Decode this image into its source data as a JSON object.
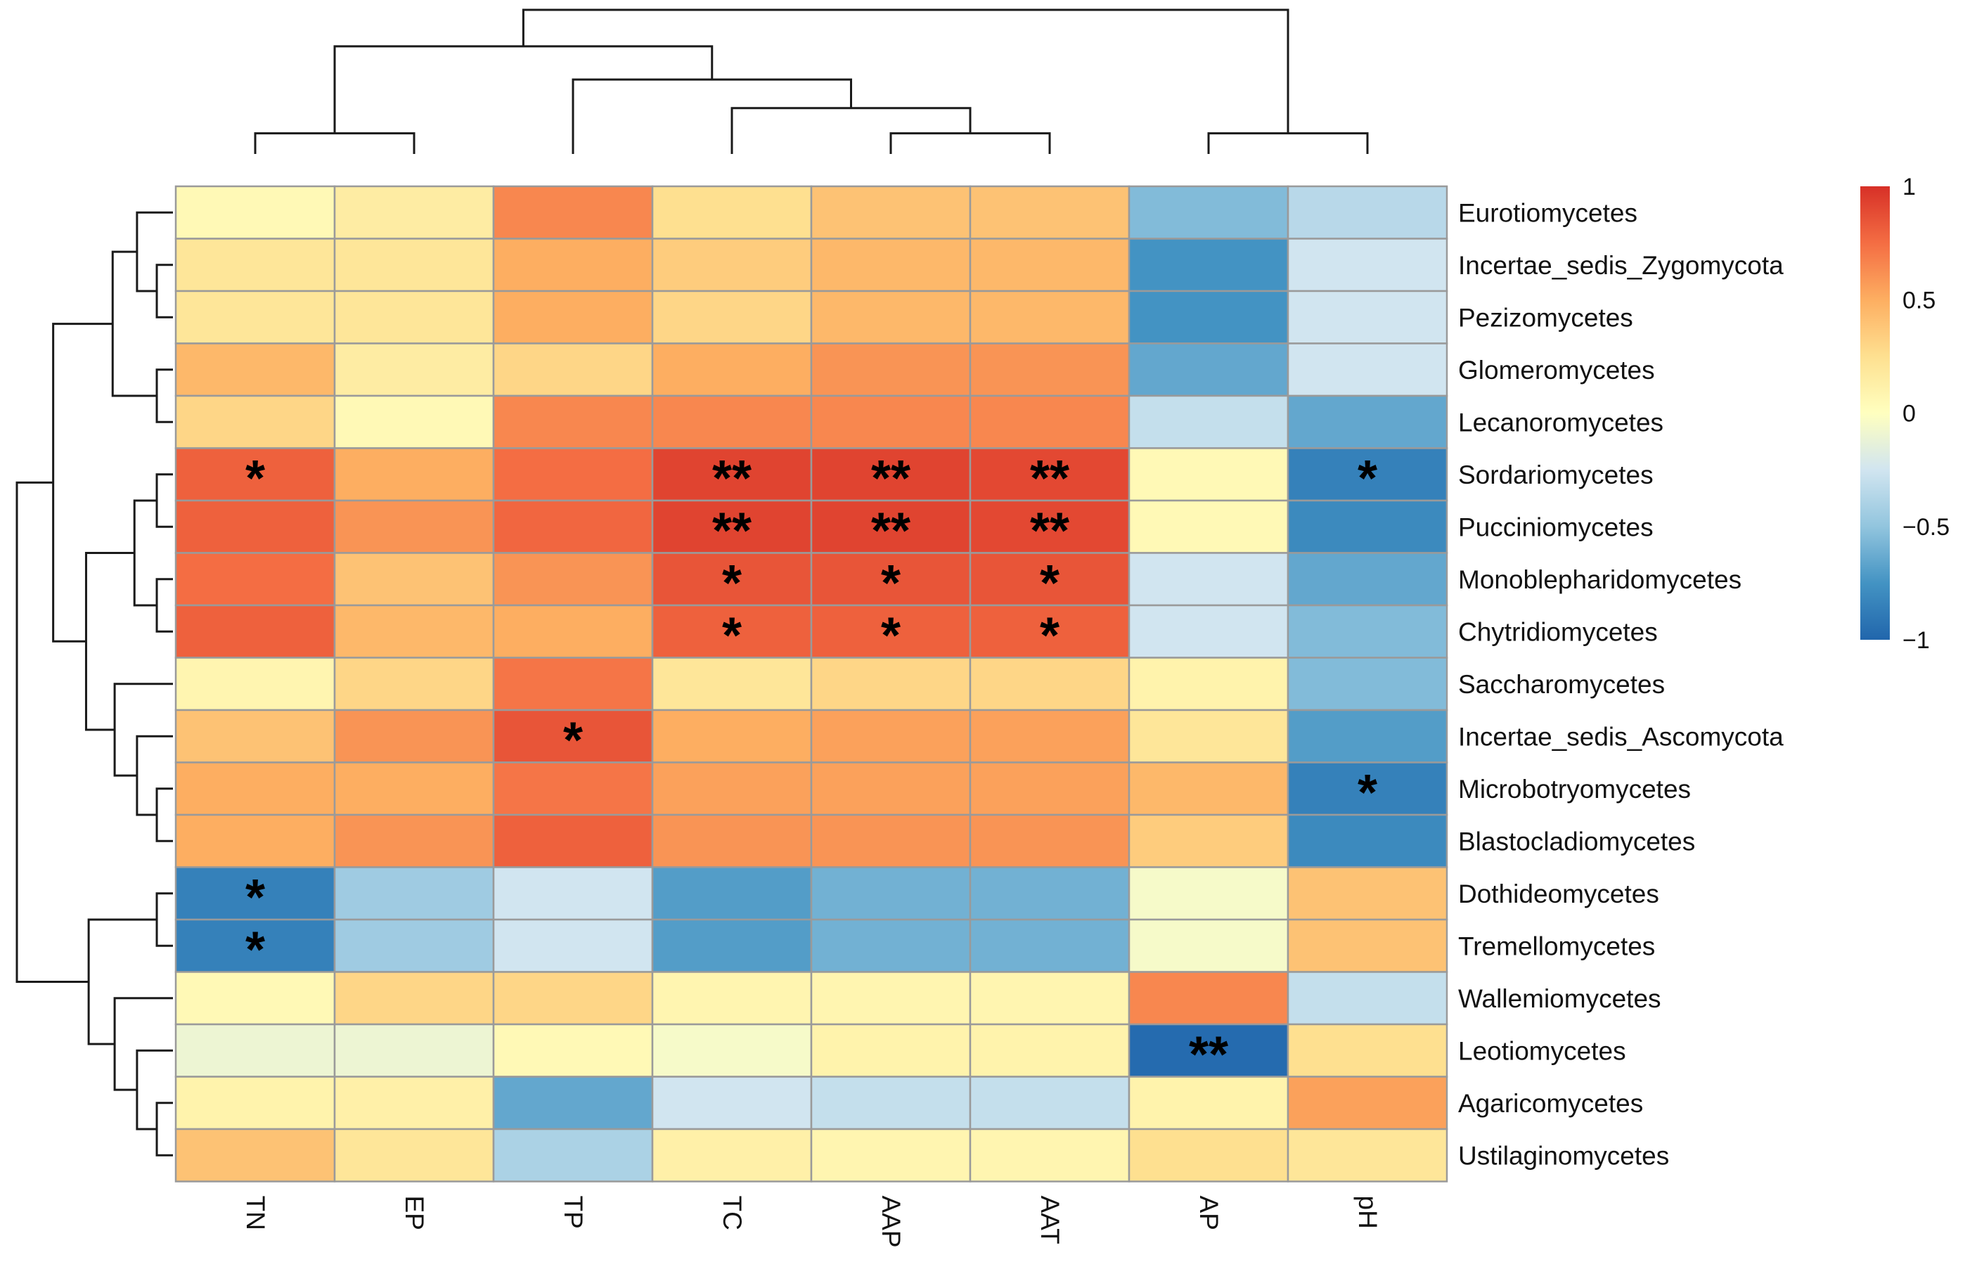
{
  "chart_data": {
    "type": "heatmap",
    "title": "",
    "columns": [
      "TN",
      "EP",
      "TP",
      "TC",
      "AAP",
      "AAT",
      "AP",
      "pH"
    ],
    "rows": [
      "Eurotiomycetes",
      "Incertae_sedis_Zygomycota",
      "Pezizomycetes",
      "Glomeromycetes",
      "Lecanoromycetes",
      "Sordariomycetes",
      "Pucciniomycetes",
      "Monoblepharidomycetes",
      "Chytridiomycetes",
      "Saccharomycetes",
      "Incertae_sedis_Ascomycota",
      "Microbotryomycetes",
      "Blastocladiomycetes",
      "Dothideomycetes",
      "Tremellomycetes",
      "Wallemiomycetes",
      "Leotiomycetes",
      "Agaricomycetes",
      "Ustilaginomycetes"
    ],
    "values": [
      [
        0.05,
        0.15,
        0.65,
        0.25,
        0.4,
        0.4,
        -0.55,
        -0.35
      ],
      [
        0.2,
        0.2,
        0.5,
        0.35,
        0.45,
        0.45,
        -0.75,
        -0.25
      ],
      [
        0.2,
        0.2,
        0.5,
        0.3,
        0.45,
        0.45,
        -0.75,
        -0.25
      ],
      [
        0.45,
        0.15,
        0.3,
        0.5,
        0.6,
        0.6,
        -0.65,
        -0.25
      ],
      [
        0.3,
        0.05,
        0.65,
        0.65,
        0.65,
        0.65,
        -0.3,
        -0.65
      ],
      [
        0.8,
        0.5,
        0.75,
        0.92,
        0.92,
        0.9,
        0.05,
        -0.85
      ],
      [
        0.8,
        0.6,
        0.78,
        0.92,
        0.92,
        0.9,
        0.05,
        -0.8
      ],
      [
        0.75,
        0.4,
        0.6,
        0.85,
        0.85,
        0.85,
        -0.25,
        -0.65
      ],
      [
        0.8,
        0.45,
        0.5,
        0.8,
        0.8,
        0.8,
        -0.25,
        -0.55
      ],
      [
        0.08,
        0.3,
        0.72,
        0.2,
        0.3,
        0.3,
        0.1,
        -0.55
      ],
      [
        0.4,
        0.6,
        0.85,
        0.5,
        0.55,
        0.55,
        0.2,
        -0.7
      ],
      [
        0.5,
        0.5,
        0.72,
        0.55,
        0.55,
        0.55,
        0.45,
        -0.85
      ],
      [
        0.5,
        0.6,
        0.8,
        0.6,
        0.6,
        0.6,
        0.35,
        -0.8
      ],
      [
        -0.85,
        -0.45,
        -0.25,
        -0.7,
        -0.6,
        -0.6,
        -0.05,
        0.4
      ],
      [
        -0.85,
        -0.45,
        -0.25,
        -0.7,
        -0.6,
        -0.6,
        -0.05,
        0.4
      ],
      [
        0.05,
        0.3,
        0.3,
        0.08,
        0.08,
        0.08,
        0.65,
        -0.3
      ],
      [
        -0.1,
        -0.1,
        0.05,
        -0.05,
        0.1,
        0.1,
        -0.97,
        0.25
      ],
      [
        0.1,
        0.12,
        -0.65,
        -0.25,
        -0.3,
        -0.3,
        0.1,
        0.55
      ],
      [
        0.4,
        0.2,
        -0.4,
        0.12,
        0.08,
        0.08,
        0.25,
        0.2
      ]
    ],
    "significance": [
      [
        "*",
        "",
        "",
        "**",
        "**",
        "**",
        "",
        "*"
      ],
      [
        "",
        "",
        "",
        "**",
        "**",
        "**",
        "",
        ""
      ],
      [
        "",
        "",
        "",
        "*",
        "*",
        "*",
        "",
        ""
      ],
      [
        "",
        "",
        "",
        "*",
        "*",
        "*",
        "",
        ""
      ],
      [
        "",
        "",
        "*",
        "",
        "",
        "",
        "",
        ""
      ],
      [
        "",
        "",
        "",
        "",
        "",
        "",
        "",
        "*"
      ],
      [
        "*",
        "",
        "",
        "",
        "",
        "",
        "",
        ""
      ],
      [
        "*",
        "",
        "",
        "",
        "",
        "",
        "",
        ""
      ],
      [
        "",
        "",
        "",
        "",
        "",
        "",
        "**",
        ""
      ]
    ],
    "significance_rows": [
      5,
      6,
      7,
      8,
      10,
      11,
      13,
      14,
      16
    ],
    "legend": {
      "ticks": [
        {
          "value": 1,
          "label": "1"
        },
        {
          "value": 0.5,
          "label": "0.5"
        },
        {
          "value": 0,
          "label": "0"
        },
        {
          "value": -0.5,
          "label": "−0.5"
        },
        {
          "value": -1,
          "label": "−1"
        }
      ],
      "range": [
        -1,
        1
      ],
      "colors": [
        "#2166ac",
        "#4393c3",
        "#92c5de",
        "#d1e5f0",
        "#ffffbf",
        "#fee090",
        "#fdae61",
        "#f46d43",
        "#d73027"
      ]
    },
    "column_dendrogram": {
      "merges": [
        [
          0,
          1
        ],
        [
          4,
          5
        ],
        [
          3,
          "g1"
        ],
        [
          2,
          "g2"
        ],
        [
          "g0",
          "g3"
        ],
        [
          6,
          7
        ],
        [
          "g4",
          "g5"
        ]
      ]
    },
    "row_dendrogram": {
      "merges": [
        [
          1,
          2
        ],
        [
          3,
          4
        ],
        [
          0,
          "g0"
        ],
        [
          "g2",
          "g1"
        ],
        [
          5,
          6
        ],
        [
          7,
          8
        ],
        [
          "g4",
          "g5"
        ],
        [
          11,
          12
        ],
        [
          10,
          "g7"
        ],
        [
          9,
          "g8"
        ],
        [
          "g6",
          "g9"
        ],
        [
          "g10",
          "g3"
        ],
        [
          13,
          14
        ],
        [
          17,
          18
        ],
        [
          16,
          "g13"
        ],
        [
          15,
          "g14"
        ],
        [
          "g12",
          "g15"
        ],
        [
          "g11",
          "g16"
        ]
      ]
    }
  }
}
